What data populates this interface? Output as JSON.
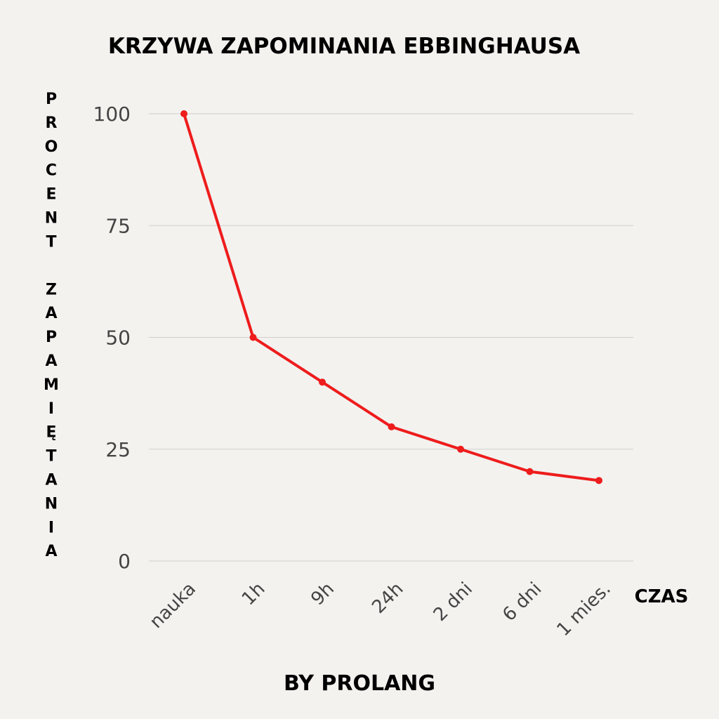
{
  "chart_data": {
    "type": "line",
    "title": "KRZYWA ZAPOMINANIA EBBINGHAUSA",
    "ylabel": "PROCENT ZAPAMIĘTANIA",
    "ylabel_words": [
      "PROCENT",
      "ZAPAMIĘTANIA"
    ],
    "xlabel": "CZAS",
    "footer": "BY PROLANG",
    "categories": [
      "nauka",
      "1h",
      "9h",
      "24h",
      "2 dni",
      "6 dni",
      "1 mies."
    ],
    "values": [
      100,
      50,
      40,
      30,
      25,
      20,
      18
    ],
    "yticks": [
      0,
      25,
      50,
      75,
      100
    ],
    "ylim": [
      0,
      100
    ],
    "grid": true,
    "colors": {
      "line": "#ee1c1c",
      "grid": "#cfcfcf",
      "background": "#f3f2ef"
    }
  }
}
